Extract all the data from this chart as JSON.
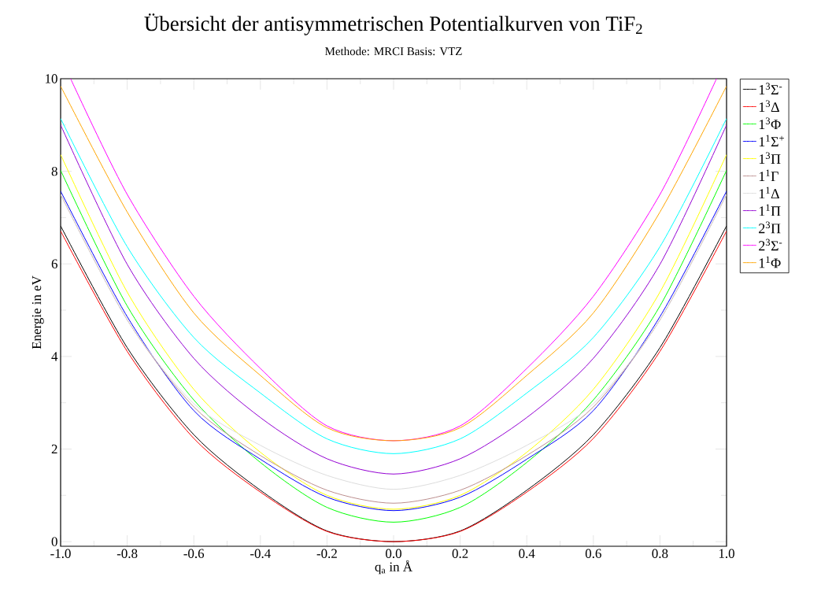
{
  "chart_data": {
    "type": "line",
    "title": "Übersicht der antisymmetrischen Potentialkurven von TiF$_{2}$",
    "subtitle": "Methode: MRCI   Basis: VTZ",
    "xlabel": "q$_{a}$ in Å",
    "ylabel": "Energie in eV",
    "x": [
      -1.0,
      -0.8,
      -0.6,
      -0.4,
      -0.2,
      0.0,
      0.2,
      0.4,
      0.6,
      0.8,
      1.0
    ],
    "series": [
      {
        "name": "1$^{3}$Σ$^{-}$",
        "color": "#000000",
        "values": [
          6.82,
          4.19,
          2.31,
          1.11,
          0.23,
          0.0,
          0.23,
          1.11,
          2.31,
          4.19,
          6.82
        ]
      },
      {
        "name": "1$^{3}$Δ",
        "color": "#ff0000",
        "values": [
          6.71,
          4.11,
          2.23,
          1.07,
          0.22,
          0.0,
          0.22,
          1.07,
          2.23,
          4.11,
          6.71
        ]
      },
      {
        "name": "1$^{3}$Φ",
        "color": "#00ff00",
        "values": [
          8.02,
          5.09,
          3.06,
          1.71,
          0.74,
          0.42,
          0.74,
          1.71,
          3.06,
          5.09,
          8.02
        ]
      },
      {
        "name": "1$^{1}$Σ$^{+}$",
        "color": "#0000ff",
        "values": [
          7.57,
          4.86,
          2.83,
          1.78,
          0.96,
          0.67,
          0.96,
          1.78,
          2.83,
          4.86,
          7.57
        ]
      },
      {
        "name": "1$^{3}$Π",
        "color": "#ffff00",
        "values": [
          8.36,
          5.39,
          3.29,
          1.93,
          1.0,
          0.7,
          1.0,
          1.93,
          3.29,
          5.39,
          8.36
        ]
      },
      {
        "name": "1$^{1}$Γ",
        "color": "#bc8f8f",
        "values": [
          7.5,
          4.79,
          2.91,
          1.86,
          1.11,
          0.83,
          1.11,
          1.86,
          2.91,
          4.79,
          7.5
        ]
      },
      {
        "name": "1$^{1}$Δ",
        "color": "#dcdcdc",
        "values": [
          7.5,
          4.79,
          2.98,
          2.08,
          1.43,
          1.13,
          1.43,
          2.08,
          2.98,
          4.79,
          7.5
        ]
      },
      {
        "name": "1$^{1}$Π",
        "color": "#9400d3",
        "values": [
          9.0,
          5.99,
          3.96,
          2.68,
          1.79,
          1.46,
          1.79,
          2.68,
          3.96,
          5.99,
          9.0
        ]
      },
      {
        "name": "2$^{3}$Π",
        "color": "#00ffff",
        "values": [
          9.14,
          6.37,
          4.41,
          3.21,
          2.22,
          1.9,
          2.22,
          3.21,
          4.41,
          6.37,
          9.14
        ]
      },
      {
        "name": "2$^{3}$Σ$^{-}$",
        "color": "#ff00ff",
        "x": [
          -0.97,
          -0.8,
          -0.6,
          -0.4,
          -0.2,
          0.0,
          0.2,
          0.4,
          0.6,
          0.8,
          0.97
        ],
        "values": [
          10.0,
          7.5,
          5.3,
          3.74,
          2.5,
          2.18,
          2.5,
          3.74,
          5.3,
          7.5,
          10.0
        ]
      },
      {
        "name": "1$^{1}$Φ",
        "color": "#ffa500",
        "values": [
          9.84,
          7.12,
          4.94,
          3.59,
          2.46,
          2.18,
          2.46,
          3.59,
          4.94,
          7.12,
          9.84
        ]
      }
    ],
    "xlim": [
      -1.0,
      1.0
    ],
    "ylim": [
      -0.1,
      10
    ],
    "xticks": [
      {
        "value": -1.0,
        "label": "-1.0"
      },
      {
        "value": -0.8,
        "label": "-0.8"
      },
      {
        "value": -0.6,
        "label": "-0.6"
      },
      {
        "value": -0.4,
        "label": "-0.4"
      },
      {
        "value": -0.2,
        "label": "-0.2"
      },
      {
        "value": 0.0,
        "label": "0.0"
      },
      {
        "value": 0.2,
        "label": "0.2"
      },
      {
        "value": 0.4,
        "label": "0.4"
      },
      {
        "value": 0.6,
        "label": "0.6"
      },
      {
        "value": 0.8,
        "label": "0.8"
      },
      {
        "value": 1.0,
        "label": "1.0"
      }
    ],
    "yticks": [
      0,
      2,
      4,
      6,
      8,
      10
    ],
    "grid": false,
    "legend": "right",
    "marker": "none",
    "line_style": "solid"
  }
}
